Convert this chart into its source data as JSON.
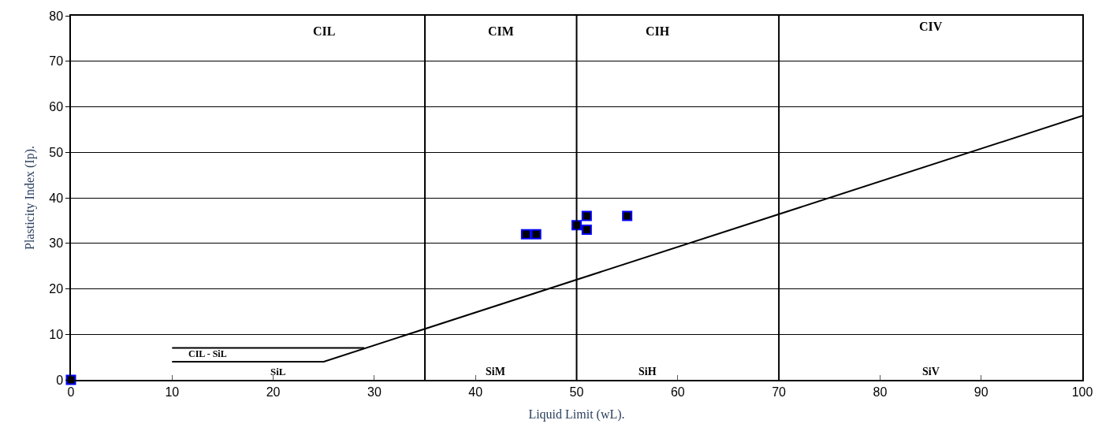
{
  "chart_data": {
    "type": "scatter",
    "xlabel": "Liquid Limit (wL).",
    "ylabel": "Plasticity Index (Ip).",
    "xlim": [
      0,
      100
    ],
    "xticks": [
      0,
      10,
      20,
      30,
      40,
      50,
      60,
      70,
      80,
      90,
      100
    ],
    "ylim": [
      0,
      80
    ],
    "yticks": [
      0,
      10,
      20,
      30,
      40,
      50,
      60,
      70,
      80
    ],
    "grid": "y",
    "marker": "square",
    "series": [
      {
        "color": "#000000",
        "x": [
          0,
          45,
          46,
          50,
          51,
          51,
          55
        ],
        "values": [
          0,
          32,
          32,
          34,
          36,
          33,
          36
        ]
      },
      {
        "type": "line",
        "color": "#000000",
        "marker": "none",
        "x": [
          10,
          25,
          100,
          null,
          10,
          29
        ],
        "values": [
          4,
          4,
          58,
          null,
          7,
          7
        ]
      }
    ],
    "ref_lines": [
      {
        "axis": "x",
        "value": 35,
        "color": "#000000"
      },
      {
        "axis": "x",
        "value": 50,
        "color": "#000000"
      },
      {
        "axis": "x",
        "value": 70,
        "color": "#000000"
      }
    ],
    "annotations": [
      "CIL",
      "CIM",
      "CIH",
      "CIV",
      "CIL - SiL",
      "SiL",
      "SiM",
      "SiH",
      "SiV"
    ]
  }
}
